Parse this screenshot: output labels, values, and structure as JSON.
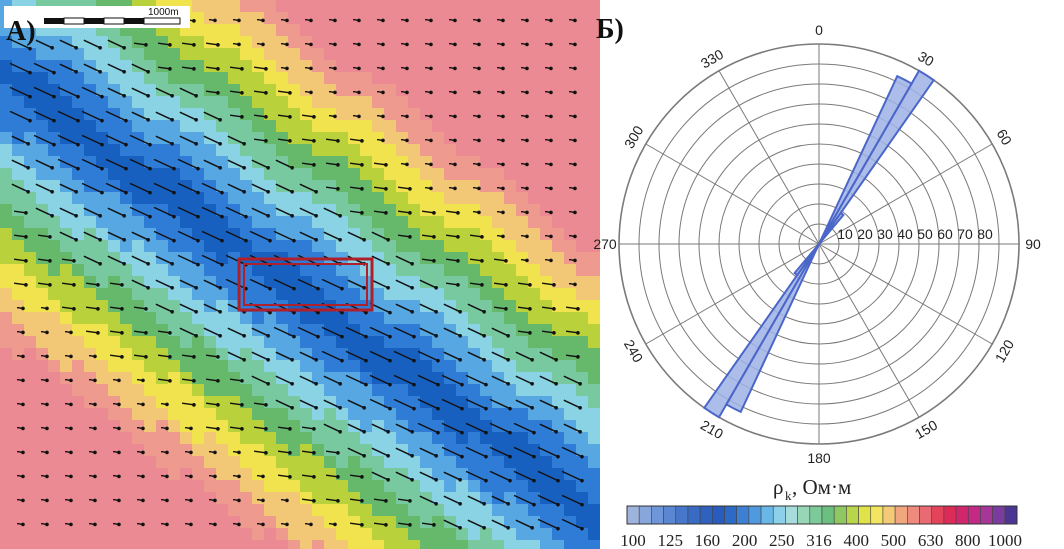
{
  "panel_a": {
    "letter": "А)",
    "scale_bar_label": "1000m",
    "highlight_color": "#b0202a",
    "arrow_color": "#111111"
  },
  "panel_b": {
    "letter": "Б)",
    "angle_labels": [
      "0",
      "30",
      "60",
      "90",
      "120",
      "150",
      "180",
      "210",
      "240",
      "270",
      "300",
      "330"
    ],
    "radial_labels": [
      "10",
      "20",
      "30",
      "40",
      "50",
      "60",
      "70",
      "80"
    ],
    "petal_color": "#4a66c8",
    "petal_fill": "#9fb2e6",
    "grid_color": "#7a7a7a"
  },
  "chart_data": {
    "type": "rose",
    "bins": [
      {
        "from_deg": 30,
        "to_deg": 35,
        "value": 95
      },
      {
        "from_deg": 25,
        "to_deg": 30,
        "value": 88
      },
      {
        "from_deg": 35,
        "to_deg": 40,
        "value": 18
      },
      {
        "from_deg": 210,
        "to_deg": 215,
        "value": 95
      },
      {
        "from_deg": 205,
        "to_deg": 210,
        "value": 88
      },
      {
        "from_deg": 215,
        "to_deg": 220,
        "value": 18
      }
    ],
    "rmax": 95
  },
  "colorbar": {
    "title_main": "ρ",
    "title_sub": "k",
    "title_unit": ", Ом·м",
    "tick_labels": [
      "100",
      "125",
      "160",
      "200",
      "250",
      "316",
      "400",
      "500",
      "630",
      "800",
      "1000"
    ],
    "colors": [
      "#9fb4dd",
      "#86a6dc",
      "#6f96d8",
      "#5a86d2",
      "#4677cb",
      "#3a6bc4",
      "#2f62bf",
      "#2a5cbd",
      "#2d6ac6",
      "#3f7fd3",
      "#4f99de",
      "#69b7e7",
      "#8dd0ea",
      "#a6dcdb",
      "#98d6b8",
      "#7cc99a",
      "#6cc07f",
      "#8fc863",
      "#b9d54c",
      "#dfe248",
      "#f3e560",
      "#f4c978",
      "#f0a77e",
      "#ee8a7e",
      "#ea6a74",
      "#e4435c",
      "#dc2b57",
      "#d2266c",
      "#c22a86",
      "#a63799",
      "#7a3c9f",
      "#4b3793"
    ]
  },
  "map_colors": [
    "#1860bf",
    "#2f7cd6",
    "#57a8e2",
    "#8ad3e4",
    "#78c9a0",
    "#66b86a",
    "#b9d23b",
    "#f0e34d",
    "#f2c776",
    "#ee9a8e",
    "#eb8a93"
  ]
}
